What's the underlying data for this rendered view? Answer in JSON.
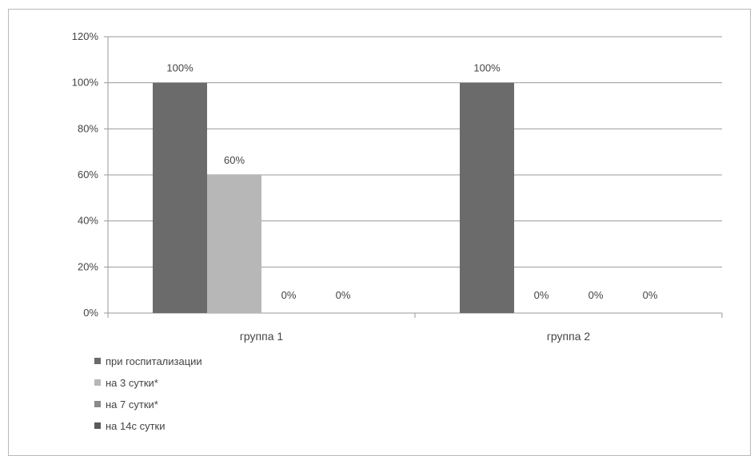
{
  "chart_data": {
    "type": "bar",
    "categories": [
      "группа 1",
      "группа 2"
    ],
    "series": [
      {
        "name": "при госпитализации",
        "values": [
          100,
          100
        ],
        "labels": [
          "100%",
          "100%"
        ],
        "color": "#6b6b6b"
      },
      {
        "name": "на 3 сутки*",
        "values": [
          60,
          0
        ],
        "labels": [
          "60%",
          "0%"
        ],
        "color": "#b7b7b7"
      },
      {
        "name": "на 7 сутки*",
        "values": [
          0,
          0
        ],
        "labels": [
          "0%",
          "0%"
        ],
        "color": "#8a8a8a"
      },
      {
        "name": "на 14с сутки",
        "values": [
          0,
          0
        ],
        "labels": [
          "0%",
          "0%"
        ],
        "color": "#5a5a5a"
      }
    ],
    "y_ticks": [
      {
        "value": 0,
        "label": "0%"
      },
      {
        "value": 20,
        "label": "20%"
      },
      {
        "value": 40,
        "label": "40%"
      },
      {
        "value": 60,
        "label": "60%"
      },
      {
        "value": 80,
        "label": "80%"
      },
      {
        "value": 100,
        "label": "100%"
      },
      {
        "value": 120,
        "label": "120%"
      }
    ],
    "ylim": [
      0,
      120
    ],
    "grid": true,
    "legend": "bottom-left"
  }
}
